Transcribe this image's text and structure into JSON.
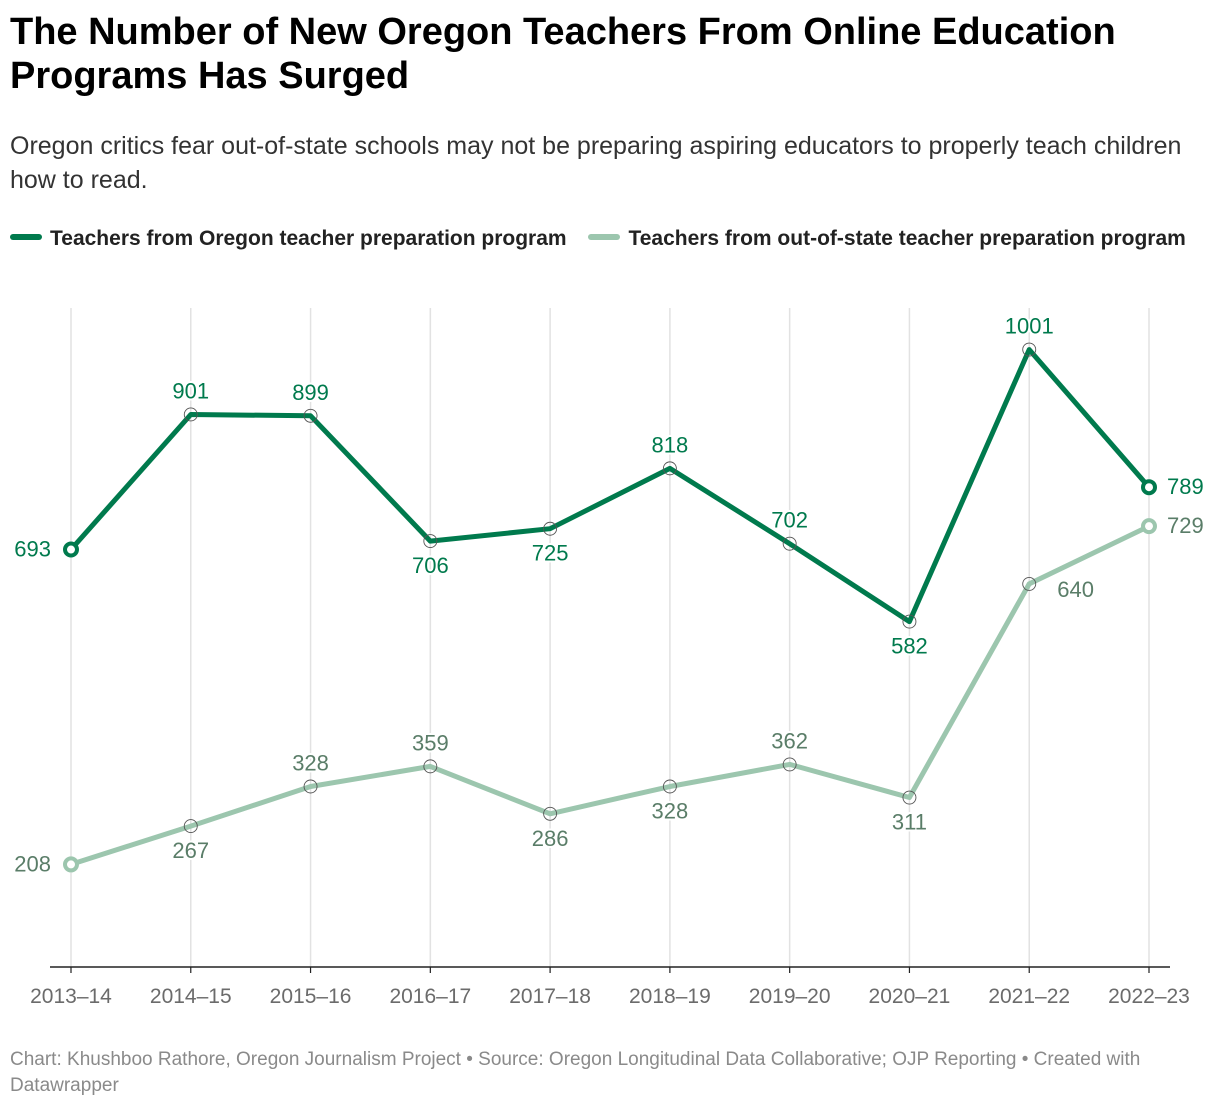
{
  "header": {
    "title": "The Number of New Oregon Teachers From Online Education Programs Has Surged",
    "subtitle": "Oregon critics fear out-of-state schools may not be preparing aspiring educators to properly teach children how to read."
  },
  "legend": {
    "oregon_label": "Teachers from Oregon teacher preparation program",
    "out_of_state_label": "Teachers from out-of-state teacher preparation program"
  },
  "colors": {
    "oregon": "#007a4d",
    "out_of_state": "#9cc6ae",
    "oregon_label": "#007a4d",
    "out_of_state_label": "#5a7d68",
    "grid": "#e2e2e2",
    "axis": "#222222",
    "tick_label": "#6b6b6b"
  },
  "chart_data": {
    "type": "line",
    "title": "The Number of New Oregon Teachers From Online Education Programs Has Surged",
    "xlabel": "",
    "ylabel": "",
    "categories": [
      "2013–14",
      "2014–15",
      "2015–16",
      "2016–17",
      "2017–18",
      "2018–19",
      "2019–20",
      "2020–21",
      "2021–22",
      "2022–23"
    ],
    "ylim": [
      50,
      1065
    ],
    "grid": "vertical",
    "legend_position": "top-left",
    "series": [
      {
        "name": "Teachers from Oregon teacher preparation program",
        "key": "oregon",
        "values": [
          693,
          901,
          899,
          706,
          725,
          818,
          702,
          582,
          1001,
          789
        ],
        "label_positions": [
          "left",
          "above",
          "above",
          "below",
          "below",
          "above",
          "above",
          "below",
          "above",
          "right"
        ]
      },
      {
        "name": "Teachers from out-of-state teacher preparation program",
        "key": "out_of_state",
        "values": [
          208,
          267,
          328,
          359,
          286,
          328,
          362,
          311,
          640,
          729
        ],
        "label_positions": [
          "left",
          "below",
          "above",
          "above",
          "below",
          "below",
          "above",
          "below",
          "below-right",
          "right"
        ]
      }
    ]
  },
  "footer": {
    "credit": "Chart: Khushboo Rathore, Oregon Journalism Project • Source: Oregon Longitudinal Data Collaborative; OJP Reporting • Created with Datawrapper"
  }
}
